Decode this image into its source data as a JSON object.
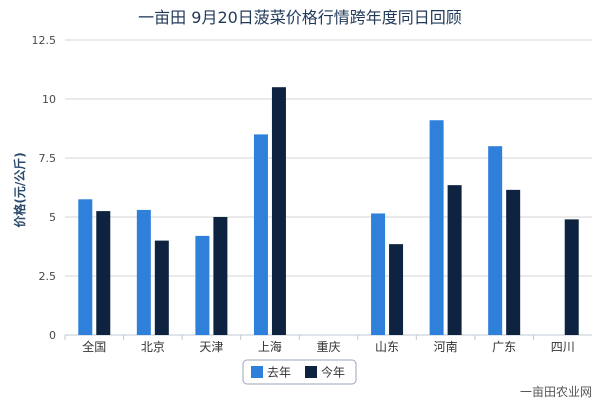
{
  "chart_data": {
    "type": "bar",
    "title": "一亩田 9月20日菠菜价格行情跨年度同日回顾",
    "ylabel": "价格(元/公斤)",
    "xlabel": "",
    "ylim": [
      0,
      12.5
    ],
    "yticks": [
      "0",
      "2.5",
      "5",
      "7.5",
      "10",
      "12.5"
    ],
    "ytick_values": [
      0,
      2.5,
      5,
      7.5,
      10,
      12.5
    ],
    "categories": [
      "全国",
      "北京",
      "天津",
      "上海",
      "重庆",
      "山东",
      "河南",
      "广东",
      "四川"
    ],
    "series": [
      {
        "name": "去年",
        "color": "#2f80db",
        "values": [
          5.75,
          5.3,
          4.2,
          8.5,
          null,
          5.15,
          9.1,
          8.0,
          null
        ]
      },
      {
        "name": "今年",
        "color": "#0e2340",
        "values": [
          5.25,
          4.0,
          5.0,
          10.5,
          null,
          3.85,
          6.35,
          6.15,
          4.9
        ]
      }
    ],
    "grid": true,
    "legend_position": "bottom-center"
  },
  "source_label": "一亩田农业网"
}
